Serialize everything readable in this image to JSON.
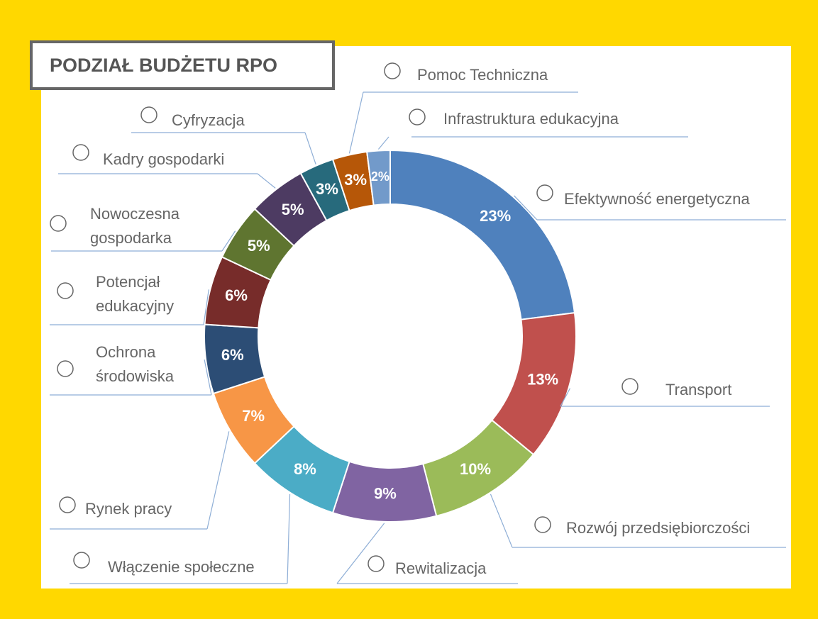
{
  "chart_data": {
    "type": "donut",
    "title": "PODZIAŁ BUDŻETU RPO",
    "categories": [
      "Efektywność energetyczna",
      "Transport",
      "Rozwój przedsiębiorczości",
      "Rewitalizacja",
      "Włączenie społeczne",
      "Rynek pracy",
      "Ochrona środowiska",
      "Potencjał edukacyjny",
      "Nowoczesna gospodarka",
      "Kadry gospodarki",
      "Cyfryzacja",
      "Pomoc Techniczna",
      "Infrastruktura edukacyjna"
    ],
    "values": [
      23,
      13,
      10,
      9,
      8,
      7,
      6,
      6,
      5,
      5,
      3,
      3,
      2
    ],
    "value_labels": [
      "23%",
      "13%",
      "10%",
      "9%",
      "8%",
      "7%",
      "6%",
      "6%",
      "5%",
      "5%",
      "3%",
      "3%",
      "2%"
    ],
    "colors": [
      "#4f81bd",
      "#c0504d",
      "#9bbb59",
      "#8064a2",
      "#4bacc6",
      "#f79646",
      "#2c4d75",
      "#772c2a",
      "#5f7530",
      "#4d3b62",
      "#276a7c",
      "#b65708",
      "#729aca"
    ]
  }
}
